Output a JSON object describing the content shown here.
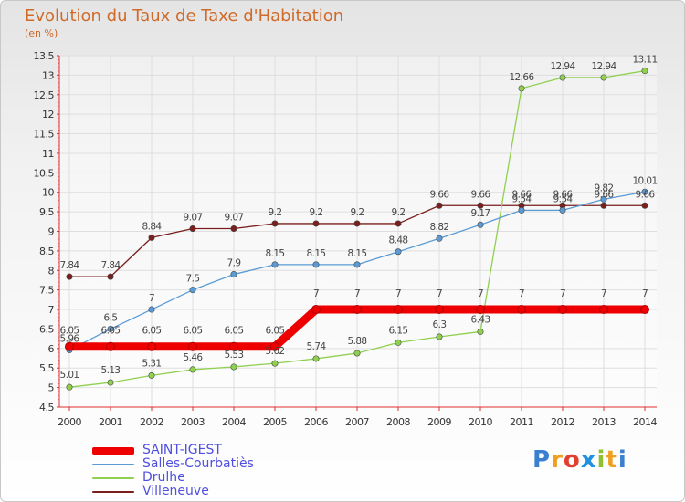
{
  "header": {
    "title": "Evolution du Taux de Taxe d'Habitation",
    "subtitle": "(en %)"
  },
  "brand": "Proxiti",
  "chart_data": {
    "type": "line",
    "title": "Evolution du Taux de Taxe d'Habitation",
    "ylabel": "(en %)",
    "xlabel": "",
    "x": [
      "2000",
      "2001",
      "2002",
      "2003",
      "2004",
      "2005",
      "2006",
      "2007",
      "2008",
      "2009",
      "2010",
      "2011",
      "2012",
      "2013",
      "2014"
    ],
    "ylim": [
      4.5,
      13.5
    ],
    "yticks": [
      "4.5",
      "5",
      "5.5",
      "6",
      "6.5",
      "7",
      "7.5",
      "8",
      "8.5",
      "9",
      "9.5",
      "10",
      "10.5",
      "11",
      "11.5",
      "12",
      "12.5",
      "13",
      "13.5"
    ],
    "grid": true,
    "legend_position": "bottom-left",
    "series": [
      {
        "name": "SAINT-IGEST",
        "color": "#ee0000",
        "values": [
          6.05,
          6.05,
          6.05,
          6.05,
          6.05,
          6.05,
          7,
          7,
          7,
          7,
          7,
          7,
          7,
          7,
          7
        ],
        "labels": [
          "6.05",
          "6.05",
          "6.05",
          "6.05",
          "6.05",
          "6.05",
          "7",
          "7",
          "7",
          "7",
          "7",
          "7",
          "7",
          "7",
          "7"
        ]
      },
      {
        "name": "Salles-Courbatiès",
        "color": "#5b9bd5",
        "values": [
          5.96,
          6.5,
          7,
          7.5,
          7.9,
          8.15,
          8.15,
          8.15,
          8.48,
          8.82,
          9.17,
          9.54,
          9.54,
          9.82,
          10.01
        ],
        "labels": [
          "5.96",
          "6.5",
          "7",
          "7.5",
          "7.9",
          "8.15",
          "8.15",
          "8.15",
          "8.48",
          "8.82",
          "9.17",
          "9.54",
          "9.54",
          "9.82",
          "10.01"
        ]
      },
      {
        "name": "Drulhe",
        "color": "#90d050",
        "values": [
          5.01,
          5.13,
          5.31,
          5.46,
          5.53,
          5.62,
          5.74,
          5.88,
          6.15,
          6.3,
          6.43,
          12.66,
          12.94,
          12.94,
          13.11
        ],
        "labels": [
          "5.01",
          "5.13",
          "5.31",
          "5.46",
          "5.53",
          "5.62",
          "5.74",
          "5.88",
          "6.15",
          "6.3",
          "6.43",
          "12.66",
          "12.94",
          "12.94",
          "13.11"
        ]
      },
      {
        "name": "Villeneuve",
        "color": "#7a1e1e",
        "values": [
          7.84,
          7.84,
          8.84,
          9.07,
          9.07,
          9.2,
          9.2,
          9.2,
          9.2,
          9.66,
          9.66,
          9.66,
          9.66,
          9.66,
          9.66
        ],
        "labels": [
          "7.84",
          "7.84",
          "8.84",
          "9.07",
          "9.07",
          "9.2",
          "9.2",
          "9.2",
          "9.2",
          "9.66",
          "9.66",
          "9.66",
          "9.66",
          "9.66",
          "9.66"
        ]
      }
    ]
  }
}
